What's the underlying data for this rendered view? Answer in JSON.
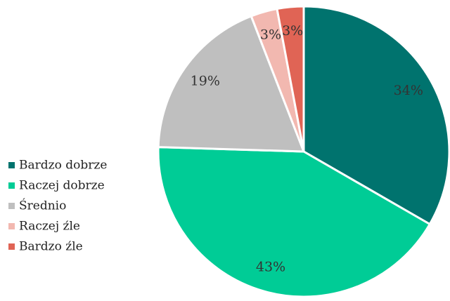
{
  "chart_data": {
    "type": "pie",
    "categories": [
      "Bardzo dobrze",
      "Raczej dobrze",
      "Średnio",
      "Raczej źle",
      "Bardzo źle"
    ],
    "values": [
      34,
      43,
      19,
      3,
      3
    ],
    "value_labels": [
      "34%",
      "43%",
      "19%",
      "3%",
      "3%"
    ],
    "colors": [
      "#00736e",
      "#00cc96",
      "#bfbfbf",
      "#f2b8b0",
      "#e06455"
    ],
    "legend": "left"
  }
}
